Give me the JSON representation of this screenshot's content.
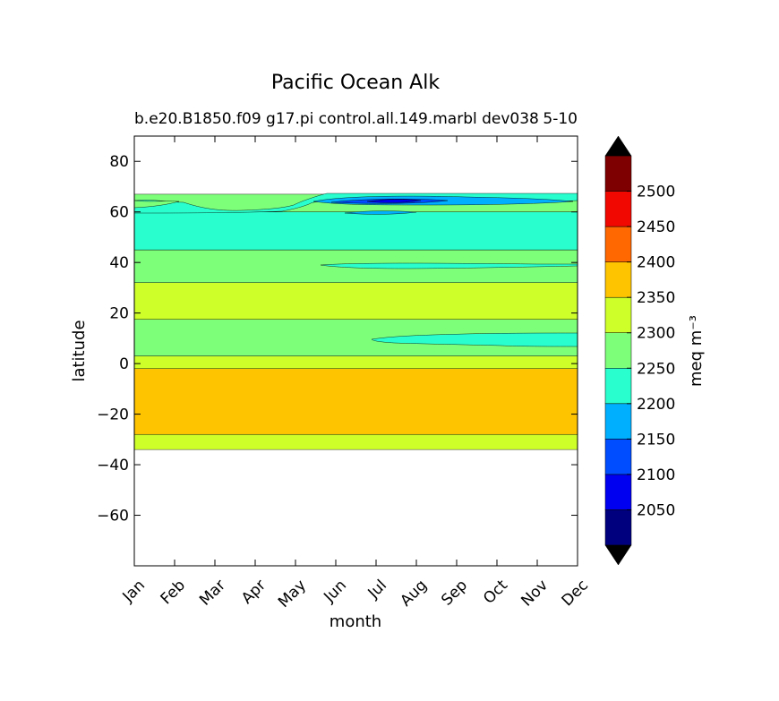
{
  "chart_data": {
    "type": "heatmap",
    "title": "Pacific Ocean Alk",
    "subtitle_left": "b.e20.B1850.f09 g17.pi control.all.149.marbl dev038",
    "subtitle_right": "5-10",
    "xlabel": "month",
    "ylabel": "latitude",
    "x_categories": [
      "Jan",
      "Feb",
      "Mar",
      "Apr",
      "May",
      "Jun",
      "Jul",
      "Aug",
      "Sep",
      "Oct",
      "Nov",
      "Dec"
    ],
    "ylim": [
      -80,
      90
    ],
    "y_ticks": [
      80,
      60,
      40,
      20,
      0,
      -20,
      -40,
      -60
    ],
    "y_tick_labels": [
      "80",
      "60",
      "40",
      "20",
      "0",
      "−20",
      "−40",
      "−60"
    ],
    "grid": false,
    "colorbar": {
      "label": "meq m⁻³",
      "levels": [
        2000,
        2050,
        2100,
        2150,
        2200,
        2250,
        2300,
        2350,
        2400,
        2450,
        2500,
        2550
      ],
      "tick_values": [
        2050,
        2100,
        2150,
        2200,
        2250,
        2300,
        2350,
        2400,
        2450,
        2500
      ],
      "tick_labels": [
        "2050",
        "2100",
        "2150",
        "2200",
        "2250",
        "2300",
        "2350",
        "2400",
        "2450",
        "2500"
      ],
      "colors": [
        "#00007f",
        "#0000f1",
        "#004cff",
        "#00b0ff",
        "#29ffce",
        "#7dff7a",
        "#ceff29",
        "#ffc400",
        "#ff6800",
        "#f10800",
        "#7f0000"
      ],
      "under_color": "#000000",
      "over_color": "#000000",
      "extend": "both"
    },
    "bands": [
      {
        "lat_min": -34,
        "lat_max": -28,
        "value_range": [
          2300,
          2350
        ]
      },
      {
        "lat_min": -28,
        "lat_max": -2,
        "value_range": [
          2350,
          2400
        ]
      },
      {
        "lat_min": -2,
        "lat_max": 3,
        "value_range": [
          2300,
          2350
        ]
      },
      {
        "lat_min": 3,
        "lat_max": 17.5,
        "value_range": [
          2250,
          2300
        ]
      },
      {
        "lat_min": 17.5,
        "lat_max": 32,
        "value_range": [
          2300,
          2350
        ]
      },
      {
        "lat_min": 32,
        "lat_max": 45,
        "value_range": [
          2250,
          2300
        ]
      },
      {
        "lat_min": 45,
        "lat_max": 60,
        "value_range": [
          2200,
          2250
        ]
      },
      {
        "lat_min": 60,
        "lat_max": 67,
        "value_range": [
          2250,
          2300
        ]
      }
    ],
    "data_coverage_lat": [
      -34,
      67
    ]
  }
}
